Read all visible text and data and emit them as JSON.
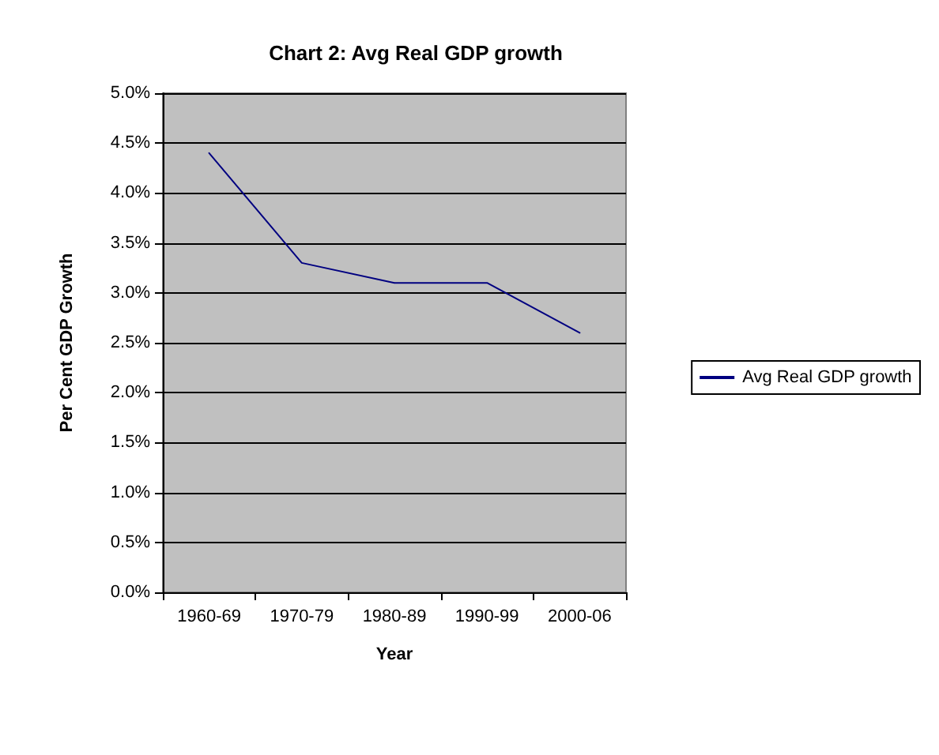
{
  "chart_data": {
    "type": "line",
    "title": "Chart 2: Avg Real GDP growth",
    "xlabel": "Year",
    "ylabel": "Per Cent GDP Growth",
    "categories": [
      "1960-69",
      "1970-79",
      "1980-89",
      "1990-99",
      "2000-06"
    ],
    "series": [
      {
        "name": "Avg Real GDP growth",
        "color": "#000080",
        "values": [
          4.4,
          3.3,
          3.1,
          3.1,
          2.6
        ]
      }
    ],
    "ylim": [
      0,
      5
    ],
    "yticks": [
      {
        "value": 0,
        "label": "0.0%"
      },
      {
        "value": 0.5,
        "label": "0.5%"
      },
      {
        "value": 1,
        "label": "1.0%"
      },
      {
        "value": 1.5,
        "label": "1.5%"
      },
      {
        "value": 2,
        "label": "2.0%"
      },
      {
        "value": 2.5,
        "label": "2.5%"
      },
      {
        "value": 3,
        "label": "3.0%"
      },
      {
        "value": 3.5,
        "label": "3.5%"
      },
      {
        "value": 4,
        "label": "4.0%"
      },
      {
        "value": 4.5,
        "label": "4.5%"
      },
      {
        "value": 5,
        "label": "5.0%"
      }
    ],
    "grid": "y",
    "legend": "right",
    "marker": "none",
    "line_style": "solid"
  }
}
